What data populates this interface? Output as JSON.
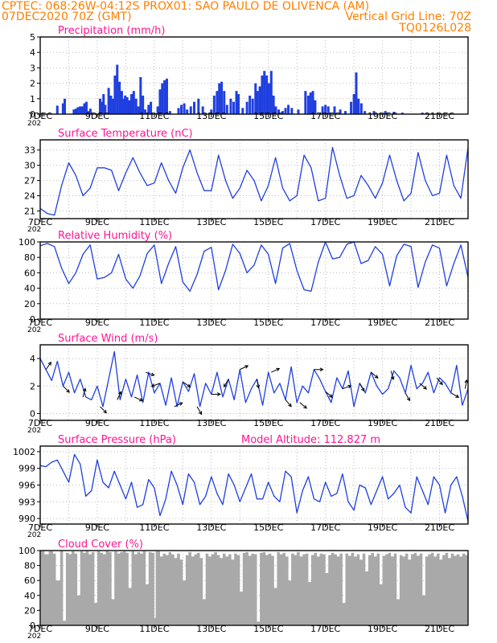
{
  "header": {
    "left_line1": "CPTEC:   068:26W-04:12S   PROX01: SAO PAULO DE OLIVENCA (AM)",
    "left_line2": "07DEC2020 70Z (GMT)",
    "right_line2": "Vertical Grid Line: 70Z",
    "right_line3": "TQ0126L028"
  },
  "colors": {
    "header": "#ff7f00",
    "title": "#ff1493",
    "series": "#1f3fdf",
    "cloud": "#a9a9a9",
    "grid": "#bbbbbb"
  },
  "x_ticks": [
    "7DEC",
    "9DEC",
    "11DEC",
    "13DEC",
    "15DEC",
    "17DEC",
    "19DEC",
    "21DEC"
  ],
  "x_tick_cut_label": "202",
  "chart_data": [
    {
      "type": "bar",
      "title": "Precipitation (mm/h)",
      "ylim": [
        0,
        5
      ],
      "yticks": [
        "0",
        "1",
        "2",
        "3",
        "4",
        "5"
      ],
      "bars": [
        [
          0.6,
          0.55
        ],
        [
          0.8,
          0.7
        ],
        [
          0.86,
          1.0
        ],
        [
          1.18,
          0.3
        ],
        [
          1.25,
          0.35
        ],
        [
          1.32,
          0.45
        ],
        [
          1.4,
          0.5
        ],
        [
          1.48,
          0.5
        ],
        [
          1.55,
          0.7
        ],
        [
          1.62,
          0.8
        ],
        [
          1.7,
          0.2
        ],
        [
          1.76,
          0.35
        ],
        [
          2.1,
          1.0
        ],
        [
          2.16,
          0.8
        ],
        [
          2.22,
          1.3
        ],
        [
          2.28,
          0.6
        ],
        [
          2.4,
          1.7
        ],
        [
          2.48,
          1.2
        ],
        [
          2.56,
          1.0
        ],
        [
          2.62,
          2.5
        ],
        [
          2.7,
          3.2
        ],
        [
          2.78,
          2.1
        ],
        [
          2.86,
          1.5
        ],
        [
          2.92,
          1.0
        ],
        [
          2.98,
          1.2
        ],
        [
          3.05,
          1.1
        ],
        [
          3.12,
          0.9
        ],
        [
          3.2,
          1.3
        ],
        [
          3.28,
          1.5
        ],
        [
          3.36,
          1.0
        ],
        [
          3.44,
          0.5
        ],
        [
          3.52,
          2.4
        ],
        [
          3.6,
          1.2
        ],
        [
          3.68,
          0.3
        ],
        [
          3.8,
          0.6
        ],
        [
          3.88,
          0.8
        ],
        [
          4.12,
          0.5
        ],
        [
          4.2,
          1.6
        ],
        [
          4.28,
          2.0
        ],
        [
          4.36,
          2.2
        ],
        [
          4.44,
          2.3
        ],
        [
          4.55,
          0.2
        ],
        [
          4.85,
          0.4
        ],
        [
          4.95,
          0.6
        ],
        [
          5.05,
          0.7
        ],
        [
          5.15,
          0.3
        ],
        [
          5.28,
          0.5
        ],
        [
          5.4,
          0.8
        ],
        [
          5.55,
          1.0
        ],
        [
          5.7,
          0.5
        ],
        [
          6.0,
          0.3
        ],
        [
          6.1,
          1.2
        ],
        [
          6.2,
          1.5
        ],
        [
          6.28,
          2.0
        ],
        [
          6.36,
          2.1
        ],
        [
          6.45,
          1.5
        ],
        [
          6.55,
          0.6
        ],
        [
          6.68,
          1.0
        ],
        [
          6.78,
          0.8
        ],
        [
          6.88,
          1.5
        ],
        [
          6.95,
          1.3
        ],
        [
          7.1,
          0.4
        ],
        [
          7.25,
          0.8
        ],
        [
          7.35,
          1.2
        ],
        [
          7.45,
          1.0
        ],
        [
          7.55,
          2.0
        ],
        [
          7.62,
          1.5
        ],
        [
          7.7,
          1.8
        ],
        [
          7.78,
          2.5
        ],
        [
          7.86,
          2.8
        ],
        [
          7.94,
          2.5
        ],
        [
          8.02,
          2.0
        ],
        [
          8.1,
          2.8
        ],
        [
          8.18,
          1.2
        ],
        [
          8.26,
          0.5
        ],
        [
          8.36,
          0.3
        ],
        [
          8.5,
          0.2
        ],
        [
          8.6,
          0.4
        ],
        [
          8.7,
          0.6
        ],
        [
          8.82,
          0.4
        ],
        [
          9.05,
          0.3
        ],
        [
          9.3,
          1.5
        ],
        [
          9.4,
          1.2
        ],
        [
          9.48,
          1.4
        ],
        [
          9.56,
          1.5
        ],
        [
          9.64,
          0.9
        ],
        [
          9.9,
          0.5
        ],
        [
          10.0,
          0.6
        ],
        [
          10.1,
          0.5
        ],
        [
          10.32,
          0.5
        ],
        [
          10.52,
          0.3
        ],
        [
          10.7,
          0.2
        ],
        [
          10.9,
          0.8
        ],
        [
          11.0,
          1.3
        ],
        [
          11.08,
          2.7
        ],
        [
          11.16,
          1.0
        ],
        [
          11.26,
          0.7
        ],
        [
          11.38,
          0.2
        ],
        [
          11.7,
          0.2
        ],
        [
          12.1,
          0.2
        ],
        [
          12.4,
          0.15
        ],
        [
          12.7,
          0.1
        ],
        [
          13.4,
          0.1
        ]
      ]
    },
    {
      "type": "line",
      "title": "Surface Temperature (nC)",
      "ylim": [
        19.5,
        35
      ],
      "yticks": [
        "21",
        "24",
        "27",
        "30",
        "33"
      ],
      "x": [
        0,
        0.25,
        0.5,
        0.75,
        1,
        1.25,
        1.5,
        1.75,
        2,
        2.25,
        2.5,
        2.75,
        3,
        3.25,
        3.5,
        3.75,
        4,
        4.25,
        4.5,
        4.75,
        5,
        5.25,
        5.5,
        5.75,
        6,
        6.25,
        6.5,
        6.75,
        7,
        7.25,
        7.5,
        7.75,
        8,
        8.25,
        8.5,
        8.75,
        9,
        9.25,
        9.5,
        9.75,
        10,
        10.25,
        10.5,
        10.75,
        11,
        11.25,
        11.5,
        11.75,
        12,
        12.25,
        12.5,
        12.75,
        13,
        13.25,
        13.5,
        13.75,
        14,
        14.25,
        14.5,
        14.75,
        15
      ],
      "y": [
        21.5,
        20.5,
        20.2,
        26,
        30.5,
        28,
        24,
        25.5,
        29.5,
        29.5,
        29,
        25,
        28.5,
        31.5,
        28.5,
        26,
        26.5,
        30.5,
        27,
        24.5,
        29.5,
        33,
        28.5,
        25,
        25,
        32,
        27,
        23.5,
        25.5,
        29,
        27,
        23,
        26,
        31.5,
        25.5,
        23,
        24,
        32,
        29.5,
        23,
        23.5,
        33.5,
        28,
        23.5,
        24,
        28,
        26,
        23.5,
        26.5,
        32,
        27,
        23,
        24.5,
        32.5,
        27,
        24,
        24.5,
        32,
        26,
        23.5,
        33.5
      ]
    },
    {
      "type": "line",
      "title": "Relative Humidity (%)",
      "ylim": [
        0,
        100
      ],
      "yticks": [
        "0",
        "20",
        "40",
        "60",
        "80",
        "100"
      ],
      "x": [
        0,
        0.25,
        0.5,
        0.75,
        1,
        1.25,
        1.5,
        1.75,
        2,
        2.25,
        2.5,
        2.75,
        3,
        3.25,
        3.5,
        3.75,
        4,
        4.25,
        4.5,
        4.75,
        5,
        5.25,
        5.5,
        5.75,
        6,
        6.25,
        6.5,
        6.75,
        7,
        7.25,
        7.5,
        7.75,
        8,
        8.25,
        8.5,
        8.75,
        9,
        9.25,
        9.5,
        9.75,
        10,
        10.25,
        10.5,
        10.75,
        11,
        11.25,
        11.5,
        11.75,
        12,
        12.25,
        12.5,
        12.75,
        13,
        13.25,
        13.5,
        13.75,
        14,
        14.25,
        14.5,
        14.75,
        15
      ],
      "y": [
        95,
        98,
        94,
        66,
        46,
        60,
        84,
        96,
        52,
        54,
        60,
        84,
        52,
        40,
        56,
        85,
        96,
        46,
        72,
        94,
        48,
        36,
        58,
        88,
        93,
        38,
        63,
        97,
        85,
        60,
        70,
        96,
        84,
        46,
        92,
        98,
        63,
        38,
        36,
        74,
        100,
        78,
        80,
        97,
        100,
        72,
        76,
        94,
        84,
        43,
        82,
        97,
        94,
        41,
        74,
        96,
        92,
        43,
        72,
        96,
        54
      ]
    },
    {
      "type": "line",
      "title": "Surface Wind (m/s)",
      "ylim": [
        -0.5,
        5
      ],
      "yticks": [
        "0",
        "2",
        "4"
      ],
      "x": [
        0,
        0.2,
        0.4,
        0.6,
        0.8,
        1,
        1.2,
        1.4,
        1.6,
        1.8,
        2,
        2.2,
        2.4,
        2.6,
        2.8,
        3,
        3.2,
        3.4,
        3.6,
        3.8,
        4,
        4.2,
        4.4,
        4.6,
        4.8,
        5,
        5.2,
        5.4,
        5.6,
        5.8,
        6,
        6.2,
        6.4,
        6.6,
        6.8,
        7,
        7.2,
        7.4,
        7.6,
        7.8,
        8,
        8.2,
        8.4,
        8.6,
        8.8,
        9,
        9.2,
        9.4,
        9.6,
        9.8,
        10,
        10.2,
        10.4,
        10.6,
        10.8,
        11,
        11.2,
        11.4,
        11.6,
        11.8,
        12,
        12.2,
        12.4,
        12.6,
        12.8,
        13,
        13.2,
        13.4,
        13.6,
        13.8,
        14,
        14.2,
        14.4,
        14.6,
        14.8,
        15
      ],
      "y": [
        4,
        3.2,
        2.4,
        3.8,
        2,
        3,
        1.5,
        2.5,
        1.2,
        1,
        2,
        0.5,
        2.5,
        4.5,
        1,
        2.5,
        1.2,
        2.8,
        0.8,
        3,
        1.5,
        2.2,
        0.6,
        2.6,
        0.5,
        2.3,
        1.6,
        2.9,
        0.5,
        2.2,
        1.4,
        3,
        1.2,
        2.5,
        1,
        3.2,
        0.8,
        1.8,
        2.5,
        0.6,
        3,
        1.5,
        2.2,
        1,
        3.4,
        0.8,
        2,
        1.5,
        3.2,
        2.5,
        1.6,
        0.8,
        2.6,
        1.8,
        3.1,
        0.5,
        2.2,
        1.5,
        3,
        2,
        1.4,
        1.8,
        3.1,
        2.6,
        1.5,
        3.5,
        1.8,
        2.2,
        3,
        1.5,
        2.6,
        2.2,
        1.5,
        3.5,
        0.6,
        1.8
      ],
      "vectors": [
        [
          0.2,
          55
        ],
        [
          0.8,
          -45
        ],
        [
          1.5,
          75
        ],
        [
          2.1,
          -45
        ],
        [
          2.7,
          65
        ],
        [
          3.3,
          -25
        ],
        [
          3.7,
          -20
        ],
        [
          4.2,
          -160
        ],
        [
          4.7,
          25
        ],
        [
          5.0,
          -35
        ],
        [
          5.5,
          -60
        ],
        [
          6.0,
          0
        ],
        [
          6.6,
          -120
        ],
        [
          7.0,
          25
        ],
        [
          7.6,
          -80
        ],
        [
          8.1,
          25
        ],
        [
          8.6,
          -50
        ],
        [
          9.1,
          -40
        ],
        [
          9.6,
          0
        ],
        [
          10.0,
          -40
        ],
        [
          10.6,
          20
        ],
        [
          11.2,
          -60
        ],
        [
          11.6,
          -40
        ],
        [
          12.3,
          -75
        ],
        [
          12.8,
          -60
        ],
        [
          13.3,
          -40
        ],
        [
          13.9,
          -50
        ],
        [
          14.4,
          -30
        ],
        [
          14.9,
          80
        ]
      ]
    },
    {
      "type": "line",
      "title": "Surface Pressure (hPa)",
      "annotation": "Model Altitude: 112.827 m",
      "ylim": [
        989,
        1003
      ],
      "yticks": [
        "990",
        "993",
        "996",
        "999",
        "1002"
      ],
      "x": [
        0,
        0.2,
        0.4,
        0.6,
        0.8,
        1,
        1.2,
        1.4,
        1.6,
        1.8,
        2,
        2.2,
        2.4,
        2.6,
        2.8,
        3,
        3.2,
        3.4,
        3.6,
        3.8,
        4,
        4.2,
        4.4,
        4.6,
        4.8,
        5,
        5.2,
        5.4,
        5.6,
        5.8,
        6,
        6.2,
        6.4,
        6.6,
        6.8,
        7,
        7.2,
        7.4,
        7.6,
        7.8,
        8,
        8.2,
        8.4,
        8.6,
        8.8,
        9,
        9.2,
        9.4,
        9.6,
        9.8,
        10,
        10.2,
        10.4,
        10.6,
        10.8,
        11,
        11.2,
        11.4,
        11.6,
        11.8,
        12,
        12.2,
        12.4,
        12.6,
        12.8,
        13,
        13.2,
        13.4,
        13.6,
        13.8,
        14,
        14.2,
        14.4,
        14.6,
        14.8,
        15
      ],
      "y": [
        999.5,
        999.3,
        1000.1,
        1000.5,
        998.5,
        996.5,
        1001.5,
        999.8,
        994,
        995,
        1000.5,
        996.5,
        995.5,
        998.5,
        996,
        993.5,
        996.5,
        992,
        992.5,
        997,
        995.5,
        990.5,
        993.5,
        998.5,
        996,
        992.5,
        998,
        996.5,
        992.5,
        994,
        997.5,
        994.5,
        992.5,
        998,
        996,
        993,
        995.5,
        998,
        993.5,
        993.5,
        996.5,
        994,
        993,
        998.5,
        997.5,
        991,
        995,
        997.5,
        993.5,
        993,
        996.5,
        994,
        994.5,
        998,
        993,
        991.5,
        996,
        995.5,
        992.5,
        995,
        997.5,
        993.5,
        994.5,
        996,
        992,
        991,
        997.5,
        995,
        992.5,
        997.5,
        996,
        991,
        996,
        997.5,
        994,
        989.5
      ]
    },
    {
      "type": "area",
      "title": "Cloud Cover (%)",
      "ylim": [
        0,
        100
      ],
      "yticks": [
        "0",
        "20",
        "40",
        "60",
        "80",
        "100"
      ],
      "x": [
        0,
        0.15,
        0.3,
        0.45,
        0.55,
        0.7,
        0.8,
        0.9,
        1,
        1.1,
        1.2,
        1.3,
        1.4,
        1.5,
        1.6,
        1.7,
        1.8,
        1.9,
        2,
        2.1,
        2.2,
        2.3,
        2.4,
        2.5,
        2.6,
        2.7,
        2.8,
        2.9,
        3,
        3.1,
        3.2,
        3.3,
        3.4,
        3.5,
        3.6,
        3.7,
        3.8,
        3.9,
        4,
        4.05,
        4.1,
        4.2,
        4.3,
        4.4,
        4.5,
        4.6,
        4.7,
        4.8,
        4.9,
        5,
        5.1,
        5.2,
        5.3,
        5.4,
        5.5,
        5.6,
        5.7,
        5.8,
        5.9,
        6,
        6.1,
        6.2,
        6.3,
        6.4,
        6.5,
        6.6,
        6.7,
        6.8,
        6.9,
        7,
        7.1,
        7.2,
        7.3,
        7.4,
        7.5,
        7.6,
        7.7,
        7.8,
        7.9,
        8,
        8.1,
        8.2,
        8.3,
        8.4,
        8.5,
        8.6,
        8.7,
        8.8,
        8.9,
        9,
        9.1,
        9.2,
        9.3,
        9.4,
        9.5,
        9.6,
        9.7,
        9.8,
        9.9,
        10,
        10.1,
        10.2,
        10.3,
        10.4,
        10.5,
        10.6,
        10.7,
        10.8,
        10.9,
        11,
        11.1,
        11.2,
        11.3,
        11.4,
        11.5,
        11.6,
        11.7,
        11.8,
        11.9,
        12,
        12.1,
        12.2,
        12.3,
        12.4,
        12.5,
        12.6,
        12.7,
        12.8,
        12.9,
        13,
        13.1,
        13.2,
        13.3,
        13.4,
        13.5,
        13.6,
        13.7,
        13.8,
        13.9,
        14,
        14.1,
        14.2,
        14.3,
        14.4,
        14.5,
        14.6,
        14.7,
        14.8,
        14.9,
        15
      ],
      "y": [
        100,
        95,
        99,
        96,
        60,
        100,
        6,
        97,
        95,
        99,
        96,
        40,
        99,
        97,
        100,
        95,
        98,
        30,
        99,
        97,
        95,
        100,
        98,
        35,
        99,
        96,
        98,
        100,
        97,
        50,
        99,
        95,
        98,
        96,
        99,
        55,
        98,
        97,
        10,
        99,
        100,
        92,
        96,
        94,
        98,
        95,
        90,
        96,
        88,
        60,
        94,
        98,
        92,
        95,
        97,
        90,
        35,
        96,
        92,
        95,
        98,
        94,
        90,
        96,
        92,
        95,
        88,
        96,
        94,
        45,
        97,
        98,
        93,
        96,
        95,
        5,
        97,
        98,
        94,
        96,
        93,
        50,
        98,
        95,
        97,
        92,
        60,
        96,
        94,
        98,
        92,
        95,
        96,
        58,
        94,
        97,
        92,
        96,
        95,
        70,
        94,
        97,
        95,
        92,
        96,
        30,
        96,
        93,
        97,
        92,
        95,
        88,
        96,
        72,
        94,
        97,
        92,
        96,
        55,
        93,
        95,
        97,
        92,
        96,
        35,
        94,
        92,
        96,
        88,
        95,
        97,
        93,
        96,
        40,
        92,
        95,
        97,
        92,
        96,
        88,
        94,
        97,
        90,
        96,
        93,
        95,
        92,
        96,
        94,
        97
      ]
    }
  ]
}
